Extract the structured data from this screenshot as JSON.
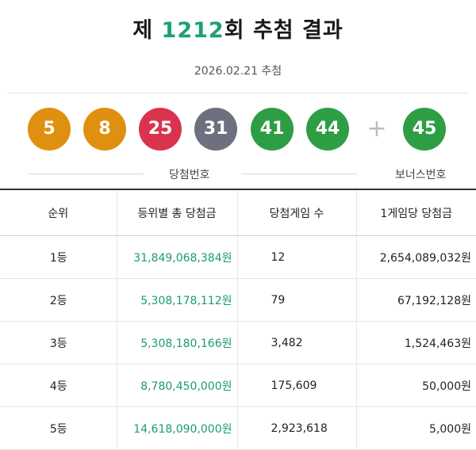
{
  "header": {
    "prefix": "제",
    "round": "1212",
    "suffix": "회 추첨 결과",
    "date": "2026.02.21 추첨"
  },
  "balls": {
    "main": [
      {
        "number": "5",
        "color": "#e09010"
      },
      {
        "number": "8",
        "color": "#e09010"
      },
      {
        "number": "25",
        "color": "#d9334f"
      },
      {
        "number": "31",
        "color": "#6e7080"
      },
      {
        "number": "41",
        "color": "#2e9e45"
      },
      {
        "number": "44",
        "color": "#2e9e45"
      }
    ],
    "plus": "+",
    "bonus": {
      "number": "45",
      "color": "#2e9e45"
    },
    "main_label": "당첨번호",
    "bonus_label": "보너스번호"
  },
  "table": {
    "headers": [
      "순위",
      "등위별 총 당첨금",
      "당첨게임 수",
      "1게임당 당첨금"
    ],
    "rows": [
      {
        "rank": "1등",
        "total": "31,849,068,384원",
        "games": "12",
        "per_game": "2,654,089,032원"
      },
      {
        "rank": "2등",
        "total": "5,308,178,112원",
        "games": "79",
        "per_game": "67,192,128원"
      },
      {
        "rank": "3등",
        "total": "5,308,180,166원",
        "games": "3,482",
        "per_game": "1,524,463원"
      },
      {
        "rank": "4등",
        "total": "8,780,450,000원",
        "games": "175,609",
        "per_game": "50,000원"
      },
      {
        "rank": "5등",
        "total": "14,618,090,000원",
        "games": "2,923,618",
        "per_game": "5,000원"
      }
    ]
  }
}
